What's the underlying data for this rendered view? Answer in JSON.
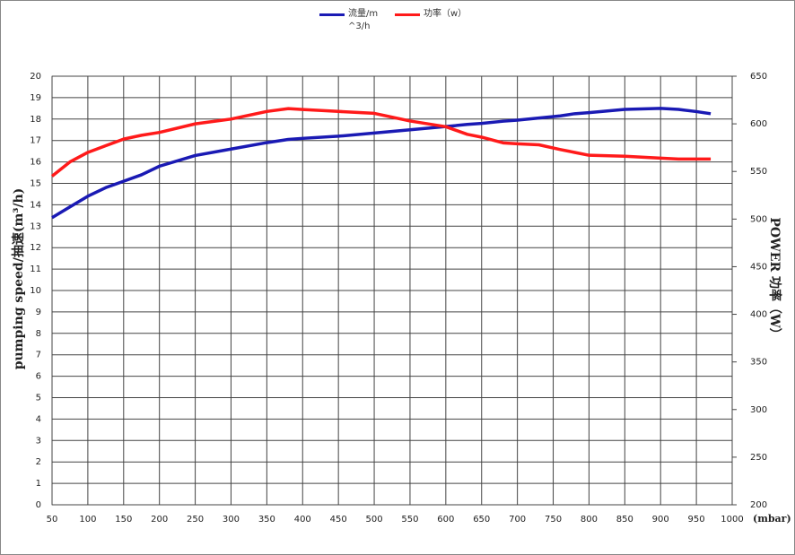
{
  "chart_data": {
    "type": "line",
    "x_unit": "(mbar)",
    "y_label": "pumping speed/抽速(m³/h)",
    "y2_label": "POWER 功率（W）",
    "x": [
      50,
      75,
      100,
      125,
      150,
      175,
      200,
      250,
      300,
      350,
      380,
      400,
      450,
      500,
      550,
      600,
      630,
      650,
      680,
      700,
      730,
      760,
      780,
      800,
      850,
      900,
      925,
      950,
      970
    ],
    "series": [
      {
        "name": "流量/m^3/h",
        "color": "#1a1ab4",
        "axis": "y",
        "values": [
          13.4,
          13.9,
          14.4,
          14.8,
          15.1,
          15.4,
          15.8,
          16.3,
          16.6,
          16.9,
          17.05,
          17.1,
          17.2,
          17.35,
          17.5,
          17.65,
          17.75,
          17.8,
          17.9,
          17.95,
          18.05,
          18.15,
          18.25,
          18.3,
          18.45,
          18.5,
          18.45,
          18.35,
          18.25
        ]
      },
      {
        "name": "功率（w）",
        "color": "#ff1a1a",
        "axis": "y2",
        "values": [
          545,
          560,
          570,
          577,
          584,
          588,
          591,
          600,
          605,
          613,
          616,
          615,
          613,
          611,
          603,
          597,
          589,
          586,
          580,
          579,
          578,
          573,
          570,
          567,
          566,
          564,
          563,
          563,
          563
        ]
      }
    ],
    "xlim": [
      50,
      1000
    ],
    "xticks": [
      50,
      100,
      150,
      200,
      250,
      300,
      350,
      400,
      450,
      500,
      550,
      600,
      650,
      700,
      750,
      800,
      850,
      900,
      950,
      1000
    ],
    "ylim": [
      0,
      20
    ],
    "yticks": [
      0,
      1,
      2,
      3,
      4,
      5,
      6,
      7,
      8,
      9,
      10,
      11,
      12,
      13,
      14,
      15,
      16,
      17,
      18,
      19,
      20
    ],
    "y2lim": [
      200,
      650
    ],
    "y2ticks": [
      200,
      250,
      300,
      350,
      400,
      450,
      500,
      550,
      600,
      650
    ],
    "grid": true
  }
}
